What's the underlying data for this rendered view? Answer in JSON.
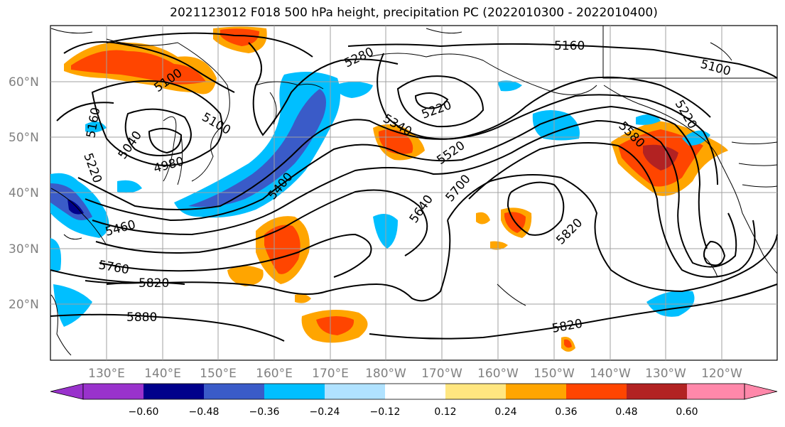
{
  "title": "2021123012 F018 500 hPa height, precipitation PC (2022010300 - 2022010400)",
  "lat_labels": [
    "60°N",
    "50°N",
    "40°N",
    "30°N",
    "20°N"
  ],
  "lon_labels": [
    "130°E",
    "140°E",
    "150°E",
    "160°E",
    "170°E",
    "180°W",
    "170°W",
    "160°W",
    "150°W",
    "140°W",
    "130°W",
    "120°W"
  ],
  "contour_labels": [
    "5160",
    "5100",
    "5280",
    "5100",
    "5220",
    "5340",
    "5520",
    "5700",
    "5640",
    "5400",
    "5040",
    "5100",
    "4980",
    "5160",
    "5220",
    "5580",
    "5220",
    "5760",
    "5820",
    "5880",
    "5820",
    "5820",
    "5460"
  ],
  "colorbar": {
    "ticks": [
      "−0.60",
      "−0.48",
      "−0.36",
      "−0.24",
      "−0.12",
      "0.12",
      "0.24",
      "0.36",
      "0.48",
      "0.60"
    ],
    "colors": [
      "#9932CC",
      "#00008B",
      "#3A5BC8",
      "#00BFFF",
      "#B0E2FF",
      "#FFFFFF",
      "#FFE680",
      "#FFA500",
      "#FF4500",
      "#B22222",
      "#FF88AA"
    ]
  },
  "colors": {
    "gridline": "#A0A0A0",
    "contour": "#000000",
    "coastline": "#000000"
  }
}
